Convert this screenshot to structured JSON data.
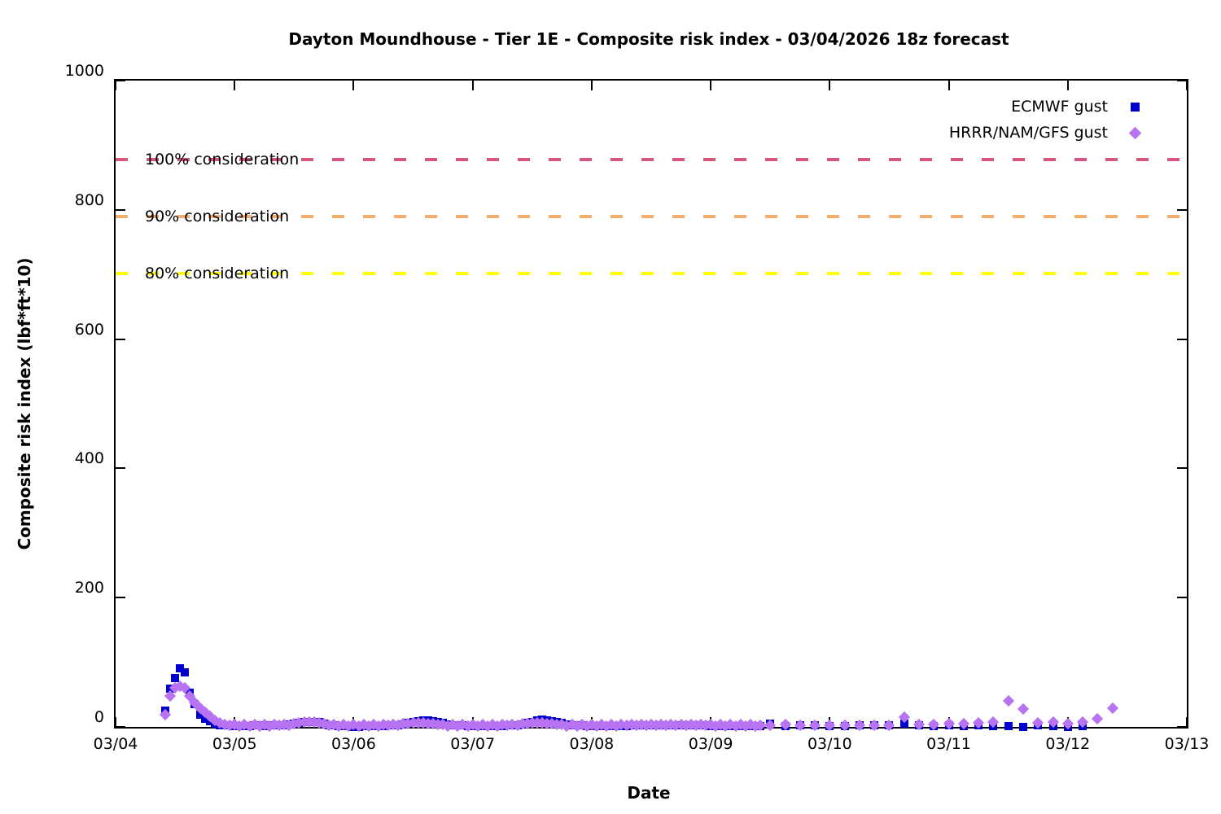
{
  "chart_data": {
    "type": "scatter",
    "title": "Dayton Moundhouse - Tier 1E - Composite risk index - 03/04/2026 18z forecast",
    "xlabel": "Date",
    "ylabel": "Composite risk index (lbf*ft*10)",
    "ylim": [
      0,
      1000
    ],
    "yticks": [
      0,
      200,
      400,
      600,
      800,
      1000
    ],
    "x_axis": {
      "tick_labels": [
        "03/04",
        "03/05",
        "03/06",
        "03/07",
        "03/08",
        "03/09",
        "03/10",
        "03/11",
        "03/12",
        "03/13"
      ],
      "days_span": 9,
      "hours_per_day": 24
    },
    "grid": false,
    "legend_position": "top-right-inside",
    "thresholds": [
      {
        "label": "100% consideration",
        "value": 878,
        "color": "#d6567c"
      },
      {
        "label": "90% consideration",
        "value": 790,
        "color": "#f5ad6e"
      },
      {
        "label": "80% consideration",
        "value": 702,
        "color": "#ffff00"
      }
    ],
    "series": [
      {
        "name": "ECMWF gust",
        "marker": "square",
        "color": "#0000cc",
        "segments": [
          {
            "start_hour": 10,
            "step_hours": 1,
            "values": [
              25,
              59,
              75,
              91,
              84,
              53,
              35,
              19,
              13,
              9,
              5,
              3,
              2,
              2,
              1,
              1,
              1,
              1,
              2,
              2,
              1,
              2,
              2,
              3,
              3,
              4,
              5,
              6,
              8,
              8,
              8,
              7,
              5,
              3,
              2,
              1,
              1,
              1,
              0,
              0,
              1,
              1,
              1,
              1,
              1,
              2,
              2,
              3,
              4,
              6,
              8,
              9,
              10,
              10,
              9,
              8,
              6,
              4,
              3,
              2,
              2,
              1,
              1,
              1,
              1,
              1,
              1,
              1,
              1,
              2,
              2,
              3,
              4,
              6,
              8,
              10,
              11,
              10,
              9,
              8,
              6,
              4,
              3,
              2,
              2,
              1,
              1,
              1,
              1,
              1,
              1,
              1,
              1,
              1,
              2,
              2,
              2,
              2,
              2,
              2,
              2,
              2,
              2,
              2,
              2,
              2,
              2,
              2,
              2,
              2,
              1,
              1,
              1,
              1,
              1,
              1,
              1,
              1,
              1,
              1,
              1
            ]
          },
          {
            "start_hour": 132,
            "step_hours": 3,
            "values": [
              5,
              1,
              3,
              2,
              1,
              1,
              2,
              2,
              2,
              5,
              2,
              1,
              2,
              1,
              2,
              1,
              1,
              0,
              2,
              1,
              0,
              1
            ]
          }
        ]
      },
      {
        "name": "HRRR/NAM/GFS gust",
        "marker": "diamond",
        "color": "#b873f2",
        "segments": [
          {
            "start_hour": 10,
            "step_hours": 1,
            "values": [
              19,
              48,
              60,
              63,
              60,
              48,
              38,
              29,
              23,
              16,
              10,
              6,
              4,
              2,
              4,
              1,
              4,
              1,
              4,
              1,
              4,
              1,
              4,
              2,
              4,
              2,
              5,
              6,
              7,
              8,
              7,
              6,
              5,
              3,
              4,
              1,
              4,
              1,
              4,
              1,
              4,
              1,
              4,
              1,
              4,
              2,
              4,
              2,
              5,
              5,
              6,
              6,
              6,
              5,
              5,
              4,
              4,
              1,
              4,
              1,
              4,
              1,
              4,
              1,
              4,
              1,
              4,
              1,
              4,
              2,
              4,
              2,
              5,
              5,
              6,
              6,
              6,
              5,
              5,
              4,
              4,
              1,
              4,
              1,
              4,
              1,
              4,
              1,
              4,
              1,
              4,
              1,
              4,
              2,
              4,
              2,
              4,
              2,
              4,
              2,
              4,
              2,
              4,
              2,
              4,
              2,
              4,
              2,
              4,
              2,
              4,
              1,
              4,
              1,
              4,
              1,
              4,
              1,
              4,
              1,
              2
            ]
          },
          {
            "start_hour": 132,
            "step_hours": 3,
            "values": [
              2,
              4,
              3,
              2,
              2,
              2,
              3,
              3,
              3,
              15,
              4,
              4,
              5,
              5,
              6,
              7,
              40,
              28,
              6,
              8,
              5,
              7,
              12,
              29
            ]
          }
        ]
      }
    ]
  }
}
